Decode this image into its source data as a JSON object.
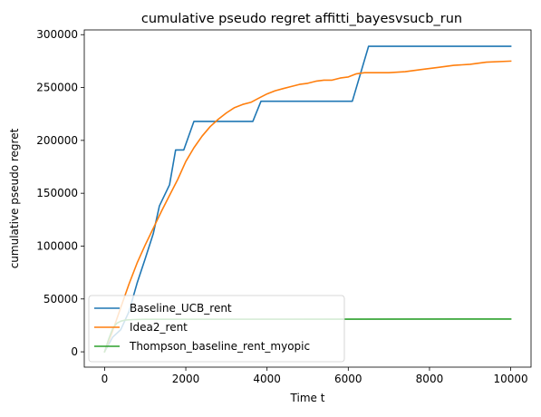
{
  "chart_data": {
    "type": "line",
    "title": "cumulative pseudo regret affitti_bayesvsucb_run",
    "xlabel": "Time t",
    "ylabel": "cumulative pseudo regret",
    "xlim": [
      -500,
      10500
    ],
    "ylim": [
      -14500,
      304500
    ],
    "x_ticks": [
      0,
      2000,
      4000,
      6000,
      8000,
      10000
    ],
    "y_ticks": [
      0,
      50000,
      100000,
      150000,
      200000,
      250000,
      300000
    ],
    "grid": false,
    "legend_position": "lower-left",
    "series": [
      {
        "name": "Baseline_UCB_rent",
        "color": "#1f77b4",
        "points": [
          [
            0,
            0
          ],
          [
            200,
            14000
          ],
          [
            400,
            21000
          ],
          [
            600,
            38000
          ],
          [
            800,
            65000
          ],
          [
            1000,
            88000
          ],
          [
            1200,
            112000
          ],
          [
            1350,
            138000
          ],
          [
            1600,
            158000
          ],
          [
            1750,
            191000
          ],
          [
            1950,
            191000
          ],
          [
            2200,
            218000
          ],
          [
            3650,
            218000
          ],
          [
            3850,
            237000
          ],
          [
            6100,
            237000
          ],
          [
            6500,
            289000
          ],
          [
            10000,
            289000
          ]
        ]
      },
      {
        "name": "Idea2_rent",
        "color": "#ff7f0e",
        "points": [
          [
            0,
            0
          ],
          [
            200,
            20000
          ],
          [
            400,
            42000
          ],
          [
            600,
            64000
          ],
          [
            800,
            84000
          ],
          [
            1000,
            101000
          ],
          [
            1200,
            117000
          ],
          [
            1400,
            133000
          ],
          [
            1600,
            148000
          ],
          [
            1800,
            163000
          ],
          [
            2000,
            180000
          ],
          [
            2200,
            193000
          ],
          [
            2400,
            204000
          ],
          [
            2600,
            213000
          ],
          [
            2800,
            220000
          ],
          [
            3000,
            226000
          ],
          [
            3200,
            231000
          ],
          [
            3400,
            234000
          ],
          [
            3600,
            236000
          ],
          [
            3800,
            240000
          ],
          [
            4000,
            244000
          ],
          [
            4200,
            247000
          ],
          [
            4400,
            249000
          ],
          [
            4600,
            251000
          ],
          [
            4800,
            253000
          ],
          [
            5000,
            254000
          ],
          [
            5200,
            256000
          ],
          [
            5400,
            257000
          ],
          [
            5600,
            257000
          ],
          [
            5800,
            259000
          ],
          [
            6000,
            260000
          ],
          [
            6200,
            263000
          ],
          [
            6400,
            264000
          ],
          [
            6600,
            264000
          ],
          [
            7000,
            264000
          ],
          [
            7400,
            265000
          ],
          [
            7800,
            267000
          ],
          [
            8200,
            269000
          ],
          [
            8600,
            271000
          ],
          [
            9000,
            272000
          ],
          [
            9400,
            274000
          ],
          [
            10000,
            275000
          ]
        ]
      },
      {
        "name": "Thompson_baseline_rent_myopic",
        "color": "#2ca02c",
        "points": [
          [
            0,
            0
          ],
          [
            100,
            12000
          ],
          [
            200,
            22000
          ],
          [
            300,
            27000
          ],
          [
            400,
            29000
          ],
          [
            500,
            30000
          ],
          [
            700,
            30500
          ],
          [
            1000,
            30800
          ],
          [
            10000,
            31000
          ]
        ]
      }
    ]
  }
}
